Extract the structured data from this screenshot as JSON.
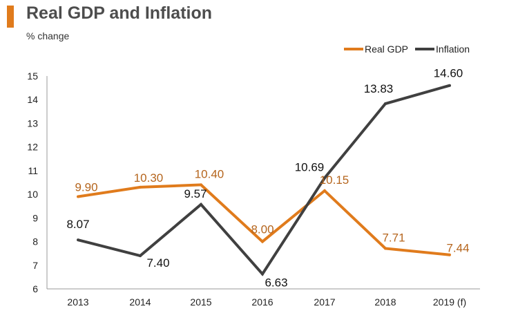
{
  "colors": {
    "accent": "#e07b1c",
    "gdp_line": "#e07b1c",
    "gdp_label": "#b5651d",
    "inflation_line": "#404040",
    "inflation_label": "#111111",
    "axis": "#9a9a9a"
  },
  "chart_data": {
    "type": "line",
    "title": "Real GDP and Inflation",
    "ylabel": "% change",
    "xlabel": "",
    "categories": [
      "2013",
      "2014",
      "2015",
      "2016",
      "2017",
      "2018",
      "2019 (f)"
    ],
    "ylim": [
      6,
      15
    ],
    "yticks": [
      6,
      7,
      8,
      9,
      10,
      11,
      12,
      13,
      14,
      15
    ],
    "grid": false,
    "legend_position": "top-right",
    "series": [
      {
        "name": "Real GDP",
        "values": [
          9.9,
          10.3,
          10.4,
          8.0,
          10.15,
          7.71,
          7.44
        ],
        "labels": [
          "9.90",
          "10.30",
          "10.40",
          "8.00",
          "10.15",
          "7.71",
          "7.44"
        ]
      },
      {
        "name": "Inflation",
        "values": [
          8.07,
          7.4,
          9.57,
          6.63,
          10.69,
          13.83,
          14.6
        ],
        "labels": [
          "8.07",
          "7.40",
          "9.57",
          "6.63",
          "10.69",
          "13.83",
          "14.60"
        ]
      }
    ]
  }
}
